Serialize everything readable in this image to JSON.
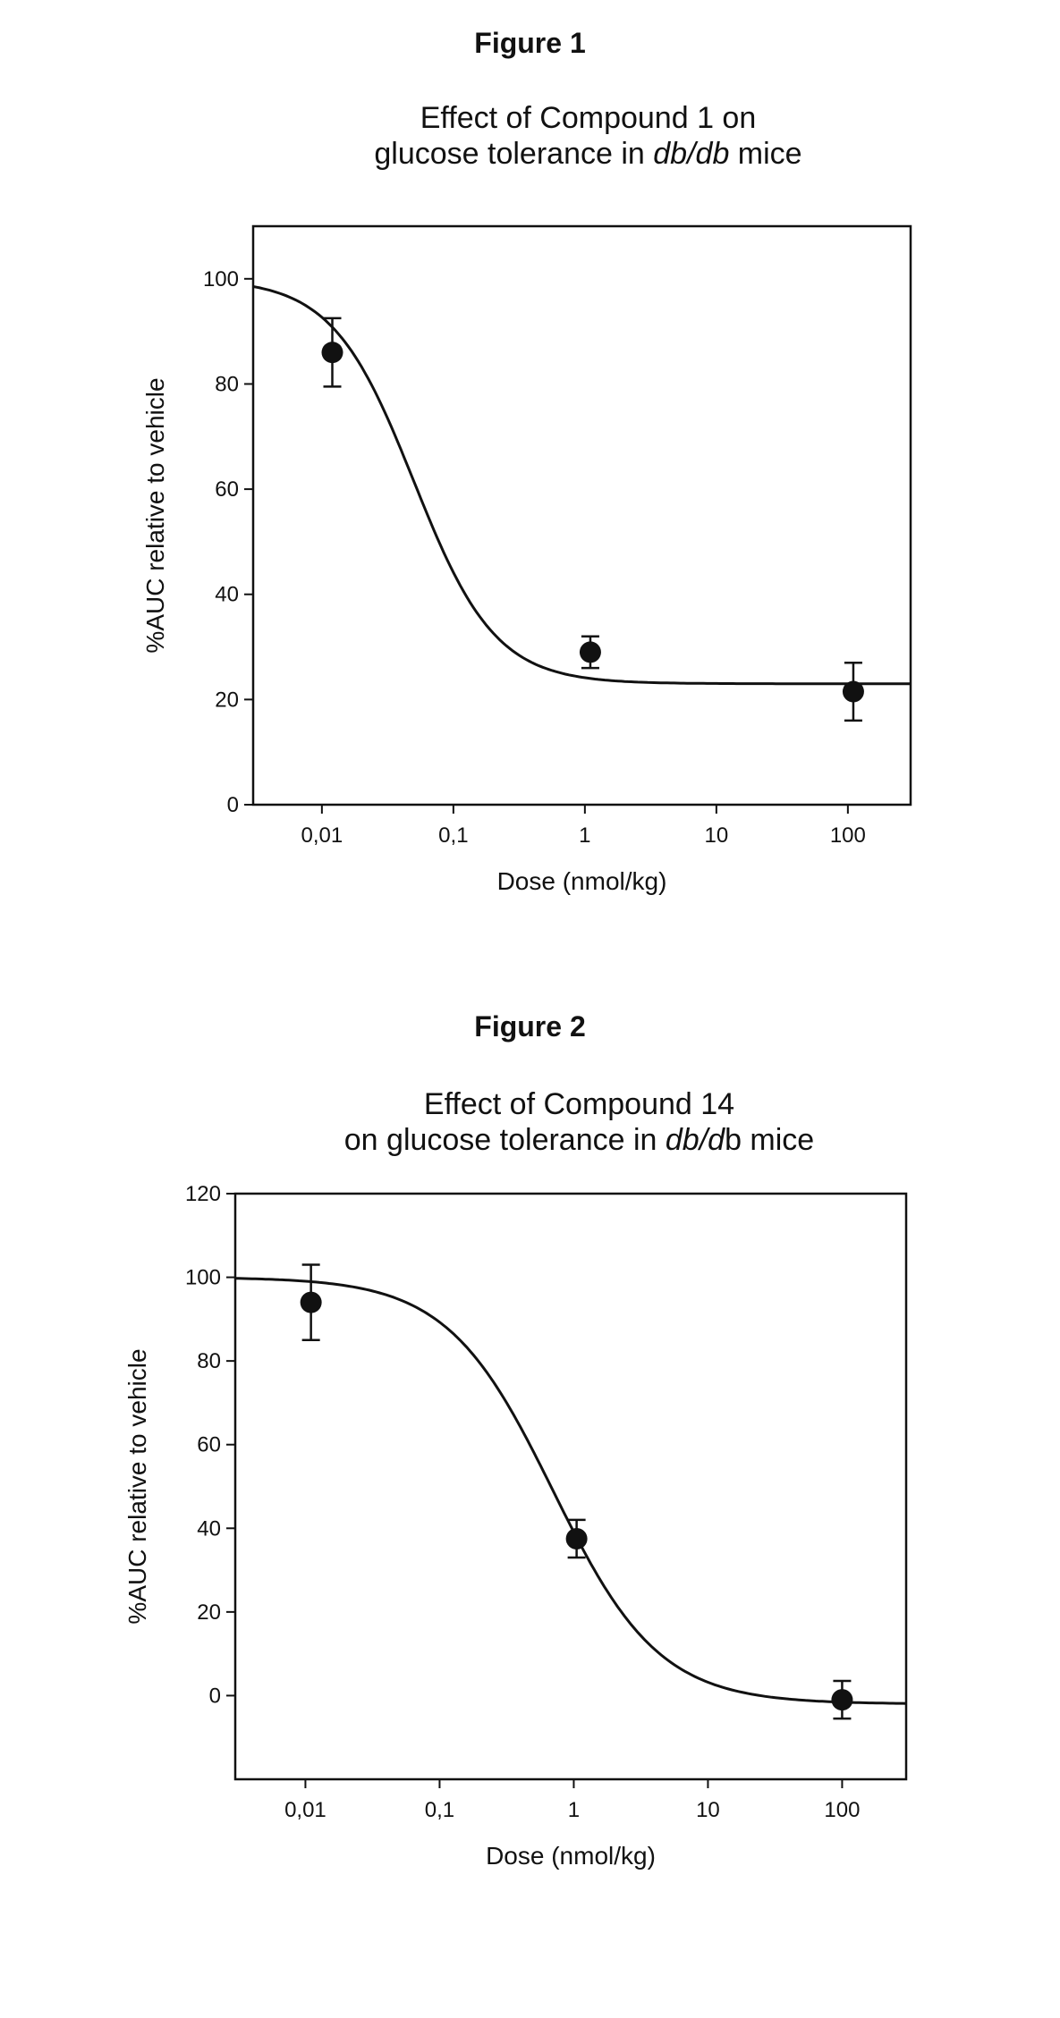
{
  "chart_data": [
    {
      "type": "scatter",
      "figure_label": "Figure 1",
      "title_line1": "Effect of Compound 1 on",
      "title_line2_prefix": "glucose tolerance in ",
      "title_line2_italic": "db/db",
      "title_line2_suffix": " mice",
      "xlabel": "Dose (nmol/kg)",
      "ylabel": "%AUC relative to vehicle",
      "xscale": "log",
      "xlim": [
        0.003,
        300
      ],
      "ylim": [
        0,
        110
      ],
      "xticks": [
        {
          "value": 0.01,
          "label": "0,01"
        },
        {
          "value": 0.1,
          "label": "0,1"
        },
        {
          "value": 1,
          "label": "1"
        },
        {
          "value": 10,
          "label": "10"
        },
        {
          "value": 100,
          "label": "100"
        }
      ],
      "yticks": [
        {
          "value": 0,
          "label": "0"
        },
        {
          "value": 20,
          "label": "20"
        },
        {
          "value": 40,
          "label": "40"
        },
        {
          "value": 60,
          "label": "60"
        },
        {
          "value": 80,
          "label": "80"
        },
        {
          "value": 100,
          "label": "100"
        }
      ],
      "points": [
        {
          "x": 0.012,
          "y": 86,
          "err": 6.5
        },
        {
          "x": 1.1,
          "y": 29,
          "err": 3
        },
        {
          "x": 110,
          "y": 21.5,
          "err": 5.5
        }
      ],
      "fit_curve": {
        "bottom": 23,
        "top": 100,
        "ec50": 0.05,
        "hill": 1.4
      },
      "grid": false
    },
    {
      "type": "scatter",
      "figure_label": "Figure 2",
      "title_line1": "Effect of Compound 14",
      "title_line2_prefix": "on glucose tolerance in ",
      "title_line2_italic": "db/d",
      "title_line2_suffix": "b mice",
      "xlabel": "Dose (nmol/kg)",
      "ylabel": "%AUC relative to vehicle",
      "xscale": "log",
      "xlim": [
        0.003,
        300
      ],
      "ylim": [
        -20,
        120
      ],
      "xticks": [
        {
          "value": 0.01,
          "label": "0,01"
        },
        {
          "value": 0.1,
          "label": "0,1"
        },
        {
          "value": 1,
          "label": "1"
        },
        {
          "value": 10,
          "label": "10"
        },
        {
          "value": 100,
          "label": "100"
        }
      ],
      "yticks": [
        {
          "value": 0,
          "label": "0"
        },
        {
          "value": 20,
          "label": "20"
        },
        {
          "value": 40,
          "label": "40"
        },
        {
          "value": 60,
          "label": "60"
        },
        {
          "value": 80,
          "label": "80"
        },
        {
          "value": 100,
          "label": "100"
        },
        {
          "value": 120,
          "label": "120"
        }
      ],
      "points": [
        {
          "x": 0.011,
          "y": 94,
          "err": 9
        },
        {
          "x": 1.05,
          "y": 37.5,
          "err": 4.5
        },
        {
          "x": 100,
          "y": -1,
          "err": 4.5
        }
      ],
      "fit_curve": {
        "bottom": -2,
        "top": 100,
        "ec50": 0.7,
        "hill": 1.1
      },
      "grid": false
    }
  ]
}
